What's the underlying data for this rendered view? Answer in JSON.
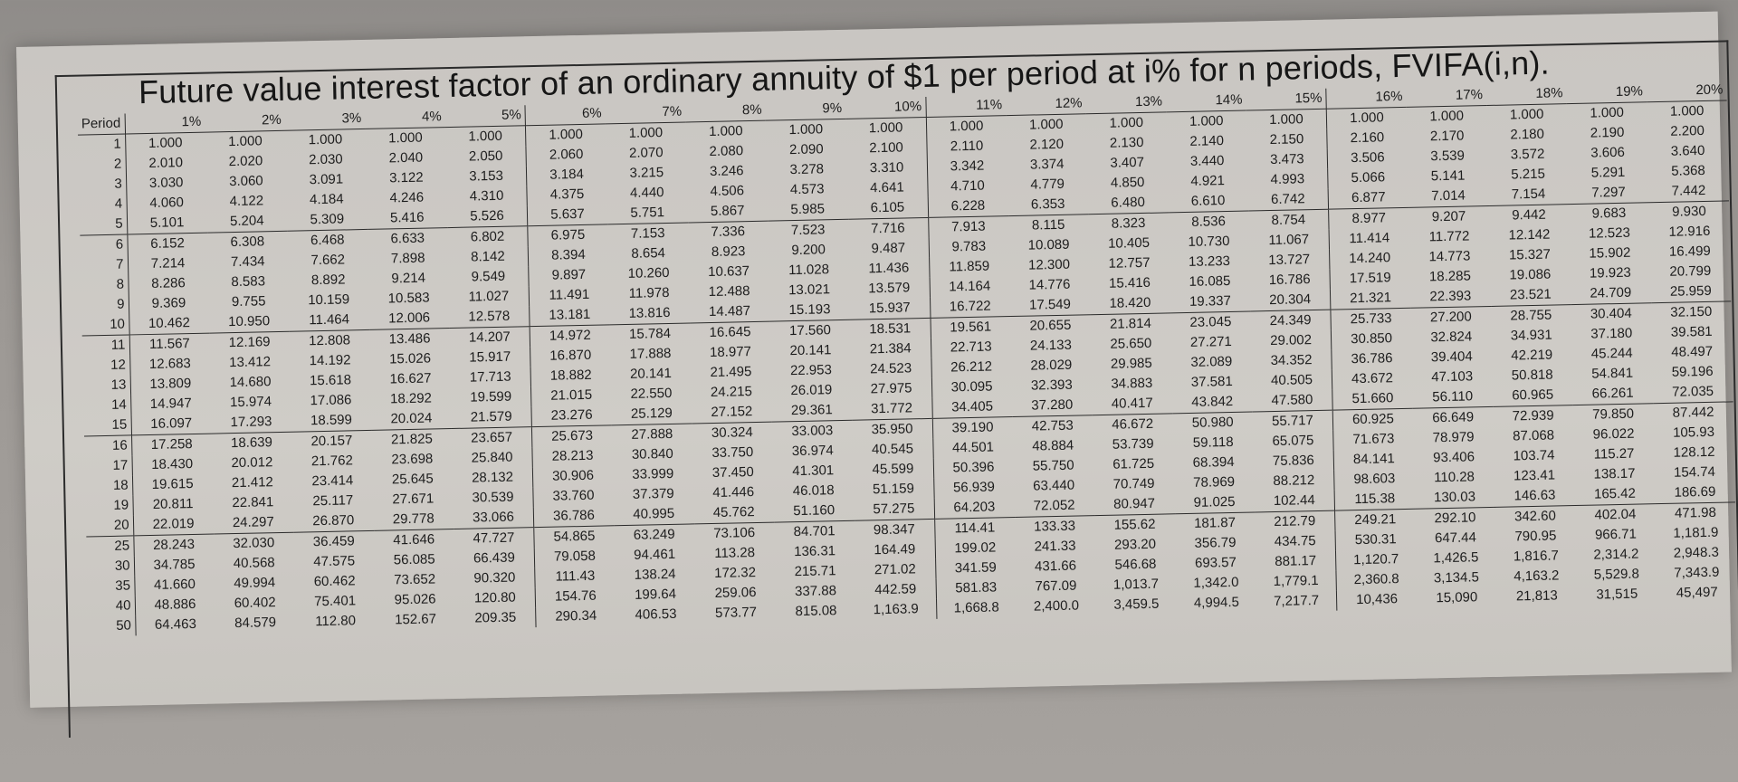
{
  "title": "Future value interest factor of an ordinary annuity of $1 per period at i% for n periods, FVIFA(i,n).",
  "table": {
    "period_header": "Period",
    "rate_headers": [
      "1%",
      "2%",
      "3%",
      "4%",
      "5%",
      "6%",
      "7%",
      "8%",
      "9%",
      "10%",
      "11%",
      "12%",
      "13%",
      "14%",
      "15%",
      "16%",
      "17%",
      "18%",
      "19%",
      "20%"
    ],
    "rows": [
      {
        "period": "1",
        "values": [
          "1.000",
          "1.000",
          "1.000",
          "1.000",
          "1.000",
          "1.000",
          "1.000",
          "1.000",
          "1.000",
          "1.000",
          "1.000",
          "1.000",
          "1.000",
          "1.000",
          "1.000",
          "1.000",
          "1.000",
          "1.000",
          "1.000",
          "1.000"
        ]
      },
      {
        "period": "2",
        "values": [
          "2.010",
          "2.020",
          "2.030",
          "2.040",
          "2.050",
          "2.060",
          "2.070",
          "2.080",
          "2.090",
          "2.100",
          "2.110",
          "2.120",
          "2.130",
          "2.140",
          "2.150",
          "2.160",
          "2.170",
          "2.180",
          "2.190",
          "2.200"
        ]
      },
      {
        "period": "3",
        "values": [
          "3.030",
          "3.060",
          "3.091",
          "3.122",
          "3.153",
          "3.184",
          "3.215",
          "3.246",
          "3.278",
          "3.310",
          "3.342",
          "3.374",
          "3.407",
          "3.440",
          "3.473",
          "3.506",
          "3.539",
          "3.572",
          "3.606",
          "3.640"
        ]
      },
      {
        "period": "4",
        "values": [
          "4.060",
          "4.122",
          "4.184",
          "4.246",
          "4.310",
          "4.375",
          "4.440",
          "4.506",
          "4.573",
          "4.641",
          "4.710",
          "4.779",
          "4.850",
          "4.921",
          "4.993",
          "5.066",
          "5.141",
          "5.215",
          "5.291",
          "5.368"
        ]
      },
      {
        "period": "5",
        "values": [
          "5.101",
          "5.204",
          "5.309",
          "5.416",
          "5.526",
          "5.637",
          "5.751",
          "5.867",
          "5.985",
          "6.105",
          "6.228",
          "6.353",
          "6.480",
          "6.610",
          "6.742",
          "6.877",
          "7.014",
          "7.154",
          "7.297",
          "7.442"
        ]
      },
      {
        "period": "6",
        "values": [
          "6.152",
          "6.308",
          "6.468",
          "6.633",
          "6.802",
          "6.975",
          "7.153",
          "7.336",
          "7.523",
          "7.716",
          "7.913",
          "8.115",
          "8.323",
          "8.536",
          "8.754",
          "8.977",
          "9.207",
          "9.442",
          "9.683",
          "9.930"
        ]
      },
      {
        "period": "7",
        "values": [
          "7.214",
          "7.434",
          "7.662",
          "7.898",
          "8.142",
          "8.394",
          "8.654",
          "8.923",
          "9.200",
          "9.487",
          "9.783",
          "10.089",
          "10.405",
          "10.730",
          "11.067",
          "11.414",
          "11.772",
          "12.142",
          "12.523",
          "12.916"
        ]
      },
      {
        "period": "8",
        "values": [
          "8.286",
          "8.583",
          "8.892",
          "9.214",
          "9.549",
          "9.897",
          "10.260",
          "10.637",
          "11.028",
          "11.436",
          "11.859",
          "12.300",
          "12.757",
          "13.233",
          "13.727",
          "14.240",
          "14.773",
          "15.327",
          "15.902",
          "16.499"
        ]
      },
      {
        "period": "9",
        "values": [
          "9.369",
          "9.755",
          "10.159",
          "10.583",
          "11.027",
          "11.491",
          "11.978",
          "12.488",
          "13.021",
          "13.579",
          "14.164",
          "14.776",
          "15.416",
          "16.085",
          "16.786",
          "17.519",
          "18.285",
          "19.086",
          "19.923",
          "20.799"
        ]
      },
      {
        "period": "10",
        "values": [
          "10.462",
          "10.950",
          "11.464",
          "12.006",
          "12.578",
          "13.181",
          "13.816",
          "14.487",
          "15.193",
          "15.937",
          "16.722",
          "17.549",
          "18.420",
          "19.337",
          "20.304",
          "21.321",
          "22.393",
          "23.521",
          "24.709",
          "25.959"
        ]
      },
      {
        "period": "11",
        "values": [
          "11.567",
          "12.169",
          "12.808",
          "13.486",
          "14.207",
          "14.972",
          "15.784",
          "16.645",
          "17.560",
          "18.531",
          "19.561",
          "20.655",
          "21.814",
          "23.045",
          "24.349",
          "25.733",
          "27.200",
          "28.755",
          "30.404",
          "32.150"
        ]
      },
      {
        "period": "12",
        "values": [
          "12.683",
          "13.412",
          "14.192",
          "15.026",
          "15.917",
          "16.870",
          "17.888",
          "18.977",
          "20.141",
          "21.384",
          "22.713",
          "24.133",
          "25.650",
          "27.271",
          "29.002",
          "30.850",
          "32.824",
          "34.931",
          "37.180",
          "39.581"
        ]
      },
      {
        "period": "13",
        "values": [
          "13.809",
          "14.680",
          "15.618",
          "16.627",
          "17.713",
          "18.882",
          "20.141",
          "21.495",
          "22.953",
          "24.523",
          "26.212",
          "28.029",
          "29.985",
          "32.089",
          "34.352",
          "36.786",
          "39.404",
          "42.219",
          "45.244",
          "48.497"
        ]
      },
      {
        "period": "14",
        "values": [
          "14.947",
          "15.974",
          "17.086",
          "18.292",
          "19.599",
          "21.015",
          "22.550",
          "24.215",
          "26.019",
          "27.975",
          "30.095",
          "32.393",
          "34.883",
          "37.581",
          "40.505",
          "43.672",
          "47.103",
          "50.818",
          "54.841",
          "59.196"
        ]
      },
      {
        "period": "15",
        "values": [
          "16.097",
          "17.293",
          "18.599",
          "20.024",
          "21.579",
          "23.276",
          "25.129",
          "27.152",
          "29.361",
          "31.772",
          "34.405",
          "37.280",
          "40.417",
          "43.842",
          "47.580",
          "51.660",
          "56.110",
          "60.965",
          "66.261",
          "72.035"
        ]
      },
      {
        "period": "16",
        "values": [
          "17.258",
          "18.639",
          "20.157",
          "21.825",
          "23.657",
          "25.673",
          "27.888",
          "30.324",
          "33.003",
          "35.950",
          "39.190",
          "42.753",
          "46.672",
          "50.980",
          "55.717",
          "60.925",
          "66.649",
          "72.939",
          "79.850",
          "87.442"
        ]
      },
      {
        "period": "17",
        "values": [
          "18.430",
          "20.012",
          "21.762",
          "23.698",
          "25.840",
          "28.213",
          "30.840",
          "33.750",
          "36.974",
          "40.545",
          "44.501",
          "48.884",
          "53.739",
          "59.118",
          "65.075",
          "71.673",
          "78.979",
          "87.068",
          "96.022",
          "105.93"
        ]
      },
      {
        "period": "18",
        "values": [
          "19.615",
          "21.412",
          "23.414",
          "25.645",
          "28.132",
          "30.906",
          "33.999",
          "37.450",
          "41.301",
          "45.599",
          "50.396",
          "55.750",
          "61.725",
          "68.394",
          "75.836",
          "84.141",
          "93.406",
          "103.74",
          "115.27",
          "128.12"
        ]
      },
      {
        "period": "19",
        "values": [
          "20.811",
          "22.841",
          "25.117",
          "27.671",
          "30.539",
          "33.760",
          "37.379",
          "41.446",
          "46.018",
          "51.159",
          "56.939",
          "63.440",
          "70.749",
          "78.969",
          "88.212",
          "98.603",
          "110.28",
          "123.41",
          "138.17",
          "154.74"
        ]
      },
      {
        "period": "20",
        "values": [
          "22.019",
          "24.297",
          "26.870",
          "29.778",
          "33.066",
          "36.786",
          "40.995",
          "45.762",
          "51.160",
          "57.275",
          "64.203",
          "72.052",
          "80.947",
          "91.025",
          "102.44",
          "115.38",
          "130.03",
          "146.63",
          "165.42",
          "186.69"
        ]
      },
      {
        "period": "25",
        "values": [
          "28.243",
          "32.030",
          "36.459",
          "41.646",
          "47.727",
          "54.865",
          "63.249",
          "73.106",
          "84.701",
          "98.347",
          "114.41",
          "133.33",
          "155.62",
          "181.87",
          "212.79",
          "249.21",
          "292.10",
          "342.60",
          "402.04",
          "471.98"
        ]
      },
      {
        "period": "30",
        "values": [
          "34.785",
          "40.568",
          "47.575",
          "56.085",
          "66.439",
          "79.058",
          "94.461",
          "113.28",
          "136.31",
          "164.49",
          "199.02",
          "241.33",
          "293.20",
          "356.79",
          "434.75",
          "530.31",
          "647.44",
          "790.95",
          "966.71",
          "1,181.9"
        ]
      },
      {
        "period": "35",
        "values": [
          "41.660",
          "49.994",
          "60.462",
          "73.652",
          "90.320",
          "111.43",
          "138.24",
          "172.32",
          "215.71",
          "271.02",
          "341.59",
          "431.66",
          "546.68",
          "693.57",
          "881.17",
          "1,120.7",
          "1,426.5",
          "1,816.7",
          "2,314.2",
          "2,948.3"
        ]
      },
      {
        "period": "40",
        "values": [
          "48.886",
          "60.402",
          "75.401",
          "95.026",
          "120.80",
          "154.76",
          "199.64",
          "259.06",
          "337.88",
          "442.59",
          "581.83",
          "767.09",
          "1,013.7",
          "1,342.0",
          "1,779.1",
          "2,360.8",
          "3,134.5",
          "4,163.2",
          "5,529.8",
          "7,343.9"
        ]
      },
      {
        "period": "50",
        "values": [
          "64.463",
          "84.579",
          "112.80",
          "152.67",
          "209.35",
          "290.34",
          "406.53",
          "573.77",
          "815.08",
          "1,163.9",
          "1,668.8",
          "2,400.0",
          "3,459.5",
          "4,994.5",
          "7,217.7",
          "10,436",
          "15,090",
          "21,813",
          "31,515",
          "45,497"
        ]
      }
    ]
  }
}
